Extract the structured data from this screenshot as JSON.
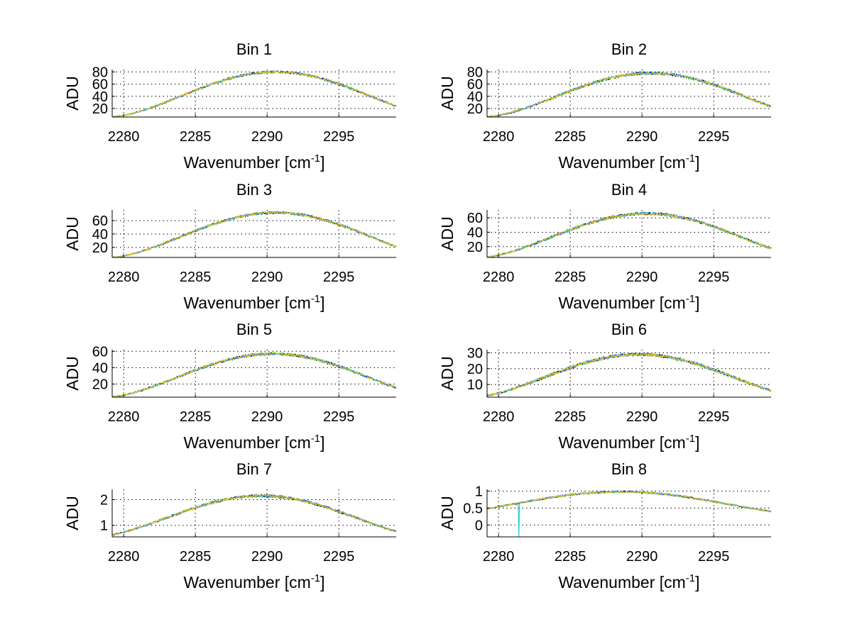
{
  "chart_data": [
    {
      "type": "line",
      "title": "Bin 1",
      "xlabel": "Wavenumber [cm",
      "xlabel_sup": "-1",
      "xlabel_end": "]",
      "ylabel": "ADU",
      "xlim": [
        2279.2,
        2299
      ],
      "ylim": [
        6,
        84
      ],
      "xticks": [
        2280,
        2285,
        2290,
        2295
      ],
      "yticks": [
        20,
        40,
        60,
        80
      ],
      "grid": true,
      "shape": {
        "base": 6,
        "peak": 80,
        "center": 2290.6,
        "halfwidth": 11.5,
        "noise": 0.025
      },
      "series": [
        {
          "color": "#000000"
        },
        {
          "color": "#0000ff"
        },
        {
          "color": "#00cccc"
        },
        {
          "color": "#ffcc00"
        }
      ]
    },
    {
      "type": "line",
      "title": "Bin 2",
      "xlabel": "Wavenumber [cm",
      "xlabel_sup": "-1",
      "xlabel_end": "]",
      "ylabel": "ADU",
      "xlim": [
        2279.2,
        2299
      ],
      "ylim": [
        6,
        84
      ],
      "xticks": [
        2280,
        2285,
        2290,
        2295
      ],
      "yticks": [
        20,
        40,
        60,
        80
      ],
      "grid": true,
      "shape": {
        "base": 6,
        "peak": 78,
        "center": 2290.6,
        "halfwidth": 11.5,
        "noise": 0.03
      },
      "series": [
        {
          "color": "#000000"
        },
        {
          "color": "#0000ff"
        },
        {
          "color": "#00cccc"
        },
        {
          "color": "#ffcc00"
        }
      ]
    },
    {
      "type": "line",
      "title": "Bin 3",
      "xlabel": "Wavenumber [cm",
      "xlabel_sup": "-1",
      "xlabel_end": "]",
      "ylabel": "ADU",
      "xlim": [
        2279.2,
        2299
      ],
      "ylim": [
        5,
        76
      ],
      "xticks": [
        2280,
        2285,
        2290,
        2295
      ],
      "yticks": [
        20,
        40,
        60
      ],
      "grid": true,
      "shape": {
        "base": 5,
        "peak": 72,
        "center": 2290.6,
        "halfwidth": 11.5,
        "noise": 0.025
      },
      "series": [
        {
          "color": "#000000"
        },
        {
          "color": "#0000ff"
        },
        {
          "color": "#00cccc"
        },
        {
          "color": "#ffcc00"
        }
      ]
    },
    {
      "type": "line",
      "title": "Bin 4",
      "xlabel": "Wavenumber [cm",
      "xlabel_sup": "-1",
      "xlabel_end": "]",
      "ylabel": "ADU",
      "xlim": [
        2279.2,
        2299
      ],
      "ylim": [
        5,
        71
      ],
      "xticks": [
        2280,
        2285,
        2290,
        2295
      ],
      "yticks": [
        20,
        40,
        60
      ],
      "grid": true,
      "shape": {
        "base": 5,
        "peak": 66,
        "center": 2290.3,
        "halfwidth": 11.5,
        "noise": 0.03
      },
      "series": [
        {
          "color": "#000000"
        },
        {
          "color": "#0000ff"
        },
        {
          "color": "#00cccc"
        },
        {
          "color": "#ffcc00"
        }
      ]
    },
    {
      "type": "line",
      "title": "Bin 5",
      "xlabel": "Wavenumber [cm",
      "xlabel_sup": "-1",
      "xlabel_end": "]",
      "ylabel": "ADU",
      "xlim": [
        2279.2,
        2299
      ],
      "ylim": [
        4,
        62
      ],
      "xticks": [
        2280,
        2285,
        2290,
        2295
      ],
      "yticks": [
        20,
        40,
        60
      ],
      "grid": true,
      "shape": {
        "base": 4,
        "peak": 57,
        "center": 2290.4,
        "halfwidth": 11.5,
        "noise": 0.03
      },
      "series": [
        {
          "color": "#000000"
        },
        {
          "color": "#0000ff"
        },
        {
          "color": "#00cccc"
        },
        {
          "color": "#ffcc00"
        }
      ]
    },
    {
      "type": "line",
      "title": "Bin 6",
      "xlabel": "Wavenumber [cm",
      "xlabel_sup": "-1",
      "xlabel_end": "]",
      "ylabel": "ADU",
      "xlim": [
        2279.2,
        2299
      ],
      "ylim": [
        2,
        32
      ],
      "xticks": [
        2280,
        2285,
        2290,
        2295
      ],
      "yticks": [
        10,
        20,
        30
      ],
      "grid": true,
      "shape": {
        "base": 2,
        "peak": 29,
        "center": 2289.8,
        "halfwidth": 11.5,
        "noise": 0.035
      },
      "series": [
        {
          "color": "#000000"
        },
        {
          "color": "#0000ff"
        },
        {
          "color": "#00cccc"
        },
        {
          "color": "#ffcc00"
        }
      ]
    },
    {
      "type": "line",
      "title": "Bin 7",
      "xlabel": "Wavenumber [cm",
      "xlabel_sup": "-1",
      "xlabel_end": "]",
      "ylabel": "ADU",
      "xlim": [
        2279.2,
        2299
      ],
      "ylim": [
        0.55,
        2.4
      ],
      "xticks": [
        2280,
        2285,
        2290,
        2295
      ],
      "yticks": [
        1,
        2
      ],
      "grid": true,
      "shape": {
        "base": 0.55,
        "peak": 2.15,
        "center": 2289.6,
        "halfwidth": 11.5,
        "noise": 0.03
      },
      "series": [
        {
          "color": "#000000"
        },
        {
          "color": "#0000ff"
        },
        {
          "color": "#00cccc"
        },
        {
          "color": "#ffcc00"
        }
      ]
    },
    {
      "type": "line",
      "title": "Bin 8",
      "xlabel": "Wavenumber [cm",
      "xlabel_sup": "-1",
      "xlabel_end": "]",
      "ylabel": "ADU",
      "xlim": [
        2279.2,
        2299
      ],
      "ylim": [
        -0.35,
        1.05
      ],
      "xticks": [
        2280,
        2285,
        2290,
        2295
      ],
      "yticks": [
        0,
        0.5,
        1
      ],
      "grid": true,
      "shape": {
        "base": 0.3,
        "peak": 0.98,
        "center": 2288.5,
        "halfwidth": 13,
        "noise": 0.04
      },
      "spikes": [
        {
          "x": 2281.4,
          "y": -0.35
        }
      ],
      "series": [
        {
          "color": "#000000"
        },
        {
          "color": "#0000ff"
        },
        {
          "color": "#00cccc"
        },
        {
          "color": "#ffcc00"
        }
      ]
    }
  ]
}
